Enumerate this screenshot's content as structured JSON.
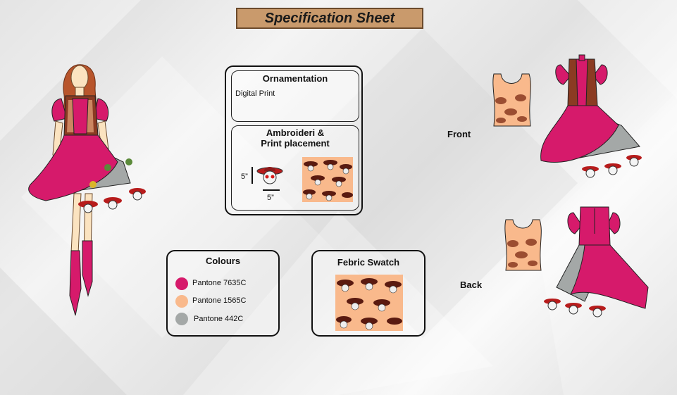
{
  "title": "Specification Sheet",
  "ornamentation": {
    "heading": "Ornamentation",
    "text": "Digital Print"
  },
  "embroidery": {
    "heading_line1": "Ambroideri &",
    "heading_line2": "Print placement",
    "height": "5”",
    "width": "5”"
  },
  "colours": {
    "heading": "Colours",
    "items": [
      {
        "name": "Pantone 7635C",
        "hex": "#d61a6b"
      },
      {
        "name": "Pantone 1565C",
        "hex": "#f9b98c"
      },
      {
        "name": "Pantone 442C",
        "hex": "#a4a8a7"
      }
    ]
  },
  "swatch": {
    "heading": "Febric Swatch"
  },
  "views": {
    "front": "Front",
    "back": "Back"
  }
}
